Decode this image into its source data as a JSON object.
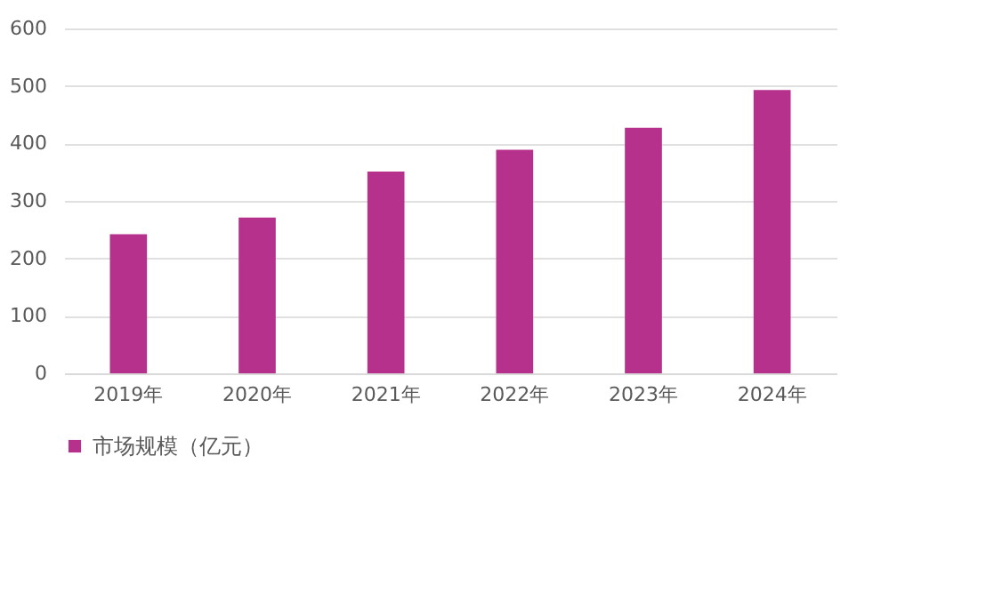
{
  "chart_data": {
    "type": "bar",
    "categories": [
      "2019年",
      "2020年",
      "2021年",
      "2022年",
      "2023年",
      "2024年"
    ],
    "series": [
      {
        "name": "市场规模（亿元）",
        "color": "#b5318c",
        "values": [
          242,
          271,
          351,
          389,
          427,
          493
        ]
      }
    ],
    "ylim": [
      0,
      600
    ],
    "yticks": [
      0,
      100,
      200,
      300,
      400,
      500,
      600
    ],
    "grid": "y",
    "legend": "bottom"
  }
}
